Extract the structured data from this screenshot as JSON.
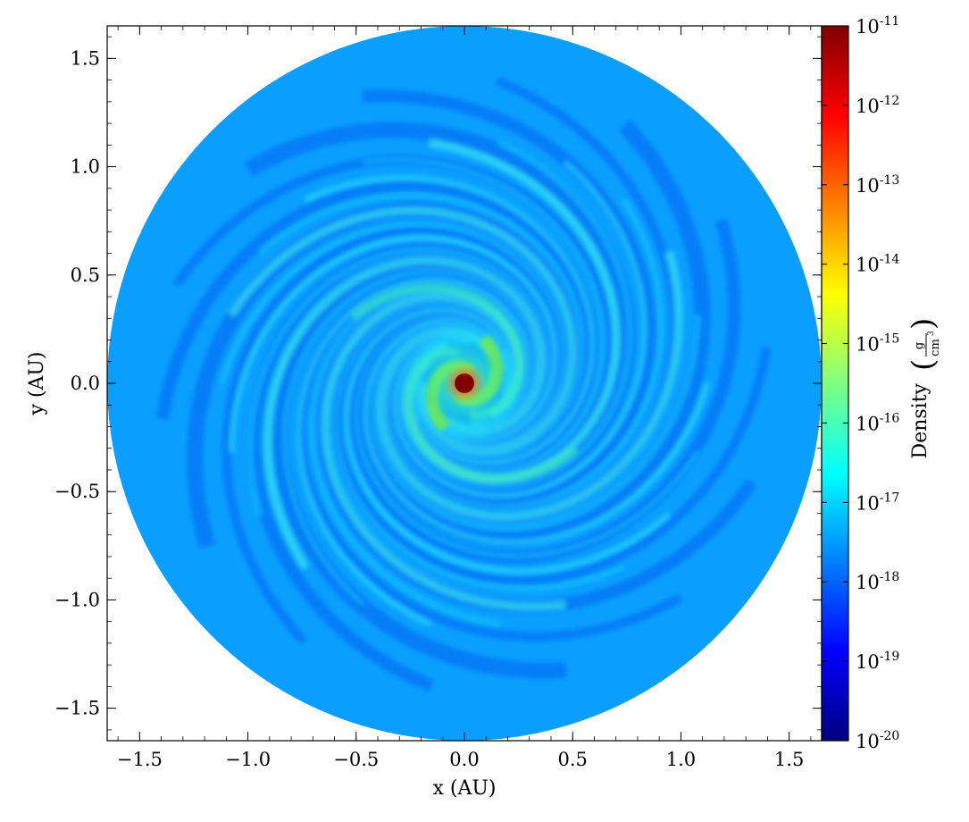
{
  "chart_data": {
    "type": "heatmap",
    "title": "",
    "xlabel": "x (AU)",
    "ylabel": "y (AU)",
    "xlim": [
      -1.65,
      1.65
    ],
    "ylim": [
      -1.65,
      1.65
    ],
    "xticks": [
      -1.5,
      -1.0,
      -0.5,
      0.0,
      0.5,
      1.0,
      1.5
    ],
    "yticks": [
      -1.5,
      -1.0,
      -0.5,
      0.0,
      0.5,
      1.0,
      1.5
    ],
    "xtick_labels": [
      "−1.5",
      "−1.0",
      "−0.5",
      "0.0",
      "0.5",
      "1.0",
      "1.5"
    ],
    "ytick_labels": [
      "−1.5",
      "−1.0",
      "−0.5",
      "0.0",
      "0.5",
      "1.0",
      "1.5"
    ],
    "disk_radius": 1.65,
    "core_radius": 0.045,
    "grid": false,
    "colorbar": {
      "label": "Density",
      "units_numerator": "g",
      "units_denominator": "cm",
      "units_denominator_exponent": "3",
      "scale": "log",
      "range": [
        1e-20,
        1e-11
      ],
      "tick_base": "10",
      "tick_exponents": [
        "-20",
        "-19",
        "-18",
        "-17",
        "-16",
        "-15",
        "-14",
        "-13",
        "-12",
        "-11"
      ],
      "colormap": "jet",
      "colormap_stops": [
        "#000080",
        "#0000ff",
        "#0080ff",
        "#00ffff",
        "#80ff80",
        "#ffff00",
        "#ff8000",
        "#ff0000",
        "#800000"
      ]
    },
    "features": {
      "typical_disk_density": "1e-17.5",
      "core_density": "1e-11",
      "spiral_arms": 2,
      "arm_color": "#9ff500",
      "background_color": "#0a9fff",
      "dark_lane_color": "#0060f0"
    }
  }
}
